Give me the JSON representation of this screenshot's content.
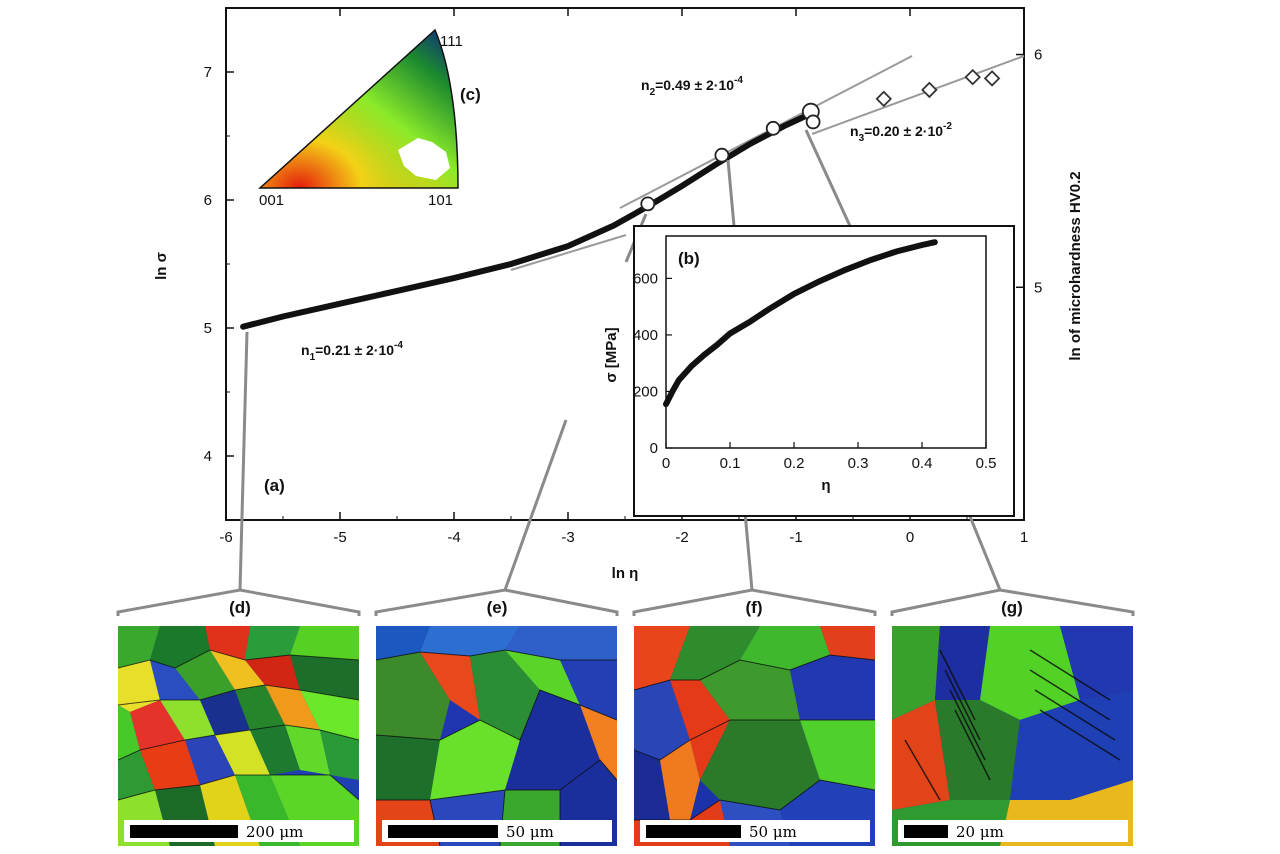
{
  "chart_data": [
    {
      "panel": "(a)",
      "type": "line",
      "xlabel": "ln η",
      "ylabel": "ln σ",
      "y2label": "ln of microhardness HV0.2",
      "xlim": [
        -6,
        1
      ],
      "ylim": [
        3.5,
        7.5
      ],
      "y2lim": [
        4.0,
        6.2
      ],
      "x_ticks": [
        "-6",
        "-5",
        "-4",
        "-3",
        "-2",
        "-1",
        "0",
        "1"
      ],
      "y_ticks": [
        "4",
        "5",
        "6",
        "7"
      ],
      "y2_ticks": [
        "5",
        "6"
      ],
      "series": [
        {
          "kind": "tensile curve",
          "x": [
            -5.85,
            -5.5,
            -5.0,
            -4.5,
            -4.0,
            -3.5,
            -3.0,
            -2.6,
            -2.3,
            -2.0,
            -1.7,
            -1.4,
            -1.1,
            -0.88
          ],
          "y": [
            5.01,
            5.09,
            5.19,
            5.29,
            5.39,
            5.5,
            5.64,
            5.8,
            5.95,
            6.11,
            6.28,
            6.44,
            6.58,
            6.67
          ]
        },
        {
          "kind": "microhardness (circles)",
          "x": [
            -2.3,
            -1.65,
            -1.2,
            -0.87,
            -0.85
          ],
          "y": [
            5.97,
            6.35,
            6.56,
            6.69,
            6.61
          ]
        },
        {
          "kind": "microhardness (diamonds)",
          "x": [
            -0.23,
            0.17,
            0.55,
            0.72
          ],
          "y": [
            6.79,
            6.86,
            6.96,
            6.95
          ]
        }
      ],
      "fit_lines": [
        {
          "label": "n",
          "sub": "1",
          "text": "=0.21 ± 2·10",
          "sup": "-4"
        },
        {
          "label": "n",
          "sub": "2",
          "text": "=0.49 ± 2·10",
          "sup": "-4"
        },
        {
          "label": "n",
          "sub": "3",
          "text": "=0.20 ± 2·10",
          "sup": "-2"
        }
      ]
    },
    {
      "panel": "(b)",
      "type": "line",
      "xlabel": "η",
      "ylabel": "σ [MPa]",
      "xlim": [
        0,
        0.5
      ],
      "ylim": [
        0,
        750
      ],
      "x_ticks": [
        "0",
        "0.1",
        "0.2",
        "0.3",
        "0.4",
        "0.5"
      ],
      "y_ticks": [
        "0",
        "200",
        "400",
        "600"
      ],
      "series": [
        {
          "x": [
            0.0,
            0.01,
            0.02,
            0.04,
            0.06,
            0.08,
            0.1,
            0.13,
            0.16,
            0.2,
            0.24,
            0.28,
            0.32,
            0.36,
            0.4,
            0.42
          ],
          "y": [
            155,
            200,
            240,
            290,
            330,
            365,
            405,
            445,
            490,
            545,
            590,
            630,
            665,
            695,
            718,
            728
          ]
        }
      ]
    }
  ],
  "inset_c": {
    "label": "(c)",
    "corner_001": "001",
    "corner_101": "101",
    "corner_111": "111"
  },
  "micrographs": [
    {
      "label": "(d)",
      "scale": "200",
      "unit": "μm"
    },
    {
      "label": "(e)",
      "scale": "50",
      "unit": "μm"
    },
    {
      "label": "(f)",
      "scale": "50",
      "unit": "μm"
    },
    {
      "label": "(g)",
      "scale": "20",
      "unit": "μm"
    }
  ],
  "colors": {
    "curve": "#111111",
    "fit_line": "#9a9a9a",
    "ipf_red": "#e53a10",
    "ipf_green": "#47d81e",
    "ipf_blue": "#1f2fb0"
  }
}
